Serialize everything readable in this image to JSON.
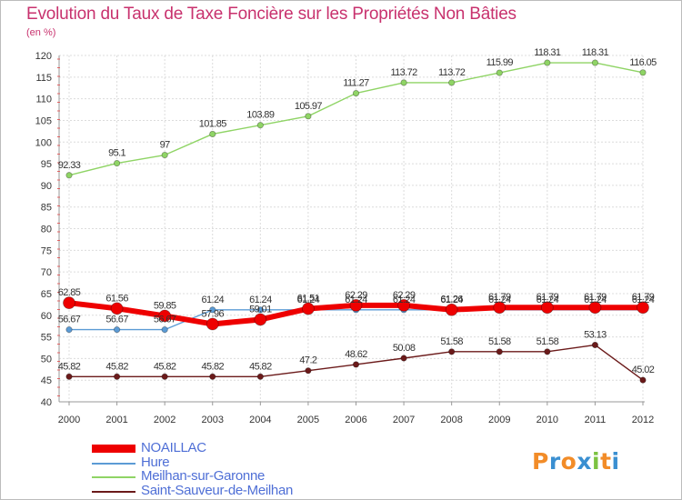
{
  "chart_data": {
    "type": "line",
    "title": "Evolution du Taux de Taxe Foncière sur les Propriétés Non Bâties",
    "ylabel": "(en %)",
    "xlabel": "",
    "ylim": [
      40,
      120
    ],
    "yticks": [
      40,
      45,
      50,
      55,
      60,
      65,
      70,
      75,
      80,
      85,
      90,
      95,
      100,
      105,
      110,
      115,
      120
    ],
    "categories": [
      "2000",
      "2001",
      "2002",
      "2003",
      "2004",
      "2005",
      "2006",
      "2007",
      "2008",
      "2009",
      "2010",
      "2011",
      "2012"
    ],
    "grid": true,
    "legend_position": "bottom-left",
    "series": [
      {
        "name": "Meilhan-sur-Garonne",
        "color": "#8fd465",
        "values": [
          92.33,
          95.1,
          97,
          101.85,
          103.89,
          105.97,
          111.27,
          113.72,
          113.72,
          115.99,
          118.31,
          118.31,
          116.05
        ],
        "labels": [
          "92.33",
          "95.1",
          "97",
          "101.85",
          "103.89",
          "105.97",
          "111.27",
          "113.72",
          "113.72",
          "115.99",
          "118.31",
          "118.31",
          "116.05"
        ]
      },
      {
        "name": "Hure",
        "color": "#5b9bd5",
        "values": [
          56.67,
          56.67,
          56.67,
          61.24,
          61.24,
          61.24,
          61.24,
          61.24,
          61.24,
          61.24,
          61.24,
          61.24,
          61.24
        ],
        "labels": [
          "56.67",
          "56.67",
          "56.67",
          "61.24",
          "61.24",
          "61.24",
          "61.24",
          "61.24",
          "61.24",
          "61.24",
          "61.24",
          "61.24",
          "61.24"
        ]
      },
      {
        "name": "Saint-Sauveur-de-Meilhan",
        "color": "#6b1a1a",
        "values": [
          45.82,
          45.82,
          45.82,
          45.82,
          45.82,
          47.2,
          48.62,
          50.08,
          51.58,
          51.58,
          51.58,
          53.13,
          45.02
        ],
        "labels": [
          "45.82",
          "45.82",
          "45.82",
          "45.82",
          "45.82",
          "47.2",
          "48.62",
          "50.08",
          "51.58",
          "51.58",
          "51.58",
          "53.13",
          "45.02"
        ]
      },
      {
        "name": "NOAILLAC",
        "color": "#ee0000",
        "values": [
          62.85,
          61.56,
          59.85,
          57.96,
          59.01,
          61.51,
          62.29,
          62.29,
          61.26,
          61.79,
          61.79,
          61.79,
          61.79
        ],
        "labels": [
          "62.85",
          "61.56",
          "59.85",
          "57.96",
          "59.01",
          "61.51",
          "62.29",
          "62.29",
          "61.26",
          "61.79",
          "61.79",
          "61.79",
          "61.79"
        ]
      }
    ],
    "legend_order": [
      "NOAILLAC",
      "Hure",
      "Meilhan-sur-Garonne",
      "Saint-Sauveur-de-Meilhan"
    ]
  },
  "logo": {
    "text": [
      "P",
      "r",
      "o",
      "x",
      "i",
      "t",
      "i"
    ],
    "colors": [
      "#f28c28",
      "#3a8fd1",
      "#f28c28",
      "#3a8fd1",
      "#7cc242",
      "#f28c28",
      "#3a8fd1"
    ]
  }
}
